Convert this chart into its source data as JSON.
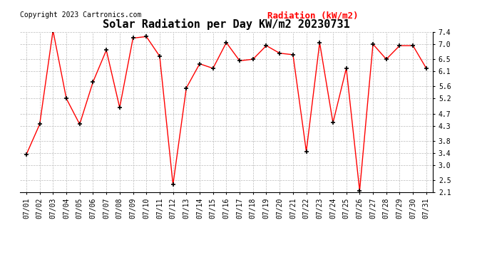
{
  "title": "Solar Radiation per Day KW/m2 20230731",
  "copyright_text": "Copyright 2023 Cartronics.com",
  "legend_label": "Radiation (kW/m2)",
  "dates": [
    "07/01",
    "07/02",
    "07/03",
    "07/04",
    "07/05",
    "07/06",
    "07/07",
    "07/08",
    "07/09",
    "07/10",
    "07/11",
    "07/12",
    "07/13",
    "07/14",
    "07/15",
    "07/16",
    "07/17",
    "07/18",
    "07/19",
    "07/20",
    "07/21",
    "07/22",
    "07/23",
    "07/24",
    "07/25",
    "07/26",
    "07/27",
    "07/28",
    "07/29",
    "07/30",
    "07/31"
  ],
  "values": [
    3.35,
    4.35,
    7.45,
    5.2,
    4.35,
    5.75,
    6.8,
    4.9,
    7.2,
    7.25,
    6.6,
    2.35,
    5.55,
    6.35,
    6.2,
    7.05,
    6.45,
    6.5,
    6.95,
    6.7,
    6.65,
    3.45,
    7.05,
    4.4,
    6.2,
    2.15,
    7.0,
    6.5,
    6.95,
    6.95,
    6.2
  ],
  "line_color": "red",
  "marker": "+",
  "marker_color": "black",
  "ylim_min": 2.1,
  "ylim_max": 7.4,
  "yticks": [
    2.1,
    2.5,
    3.0,
    3.4,
    3.8,
    4.3,
    4.7,
    5.2,
    5.6,
    6.1,
    6.5,
    7.0,
    7.4
  ],
  "bg_color": "white",
  "grid_color": "#bbbbbb",
  "title_fontsize": 11,
  "copyright_fontsize": 7,
  "legend_fontsize": 9,
  "tick_fontsize": 7,
  "ytick_fontsize": 7
}
